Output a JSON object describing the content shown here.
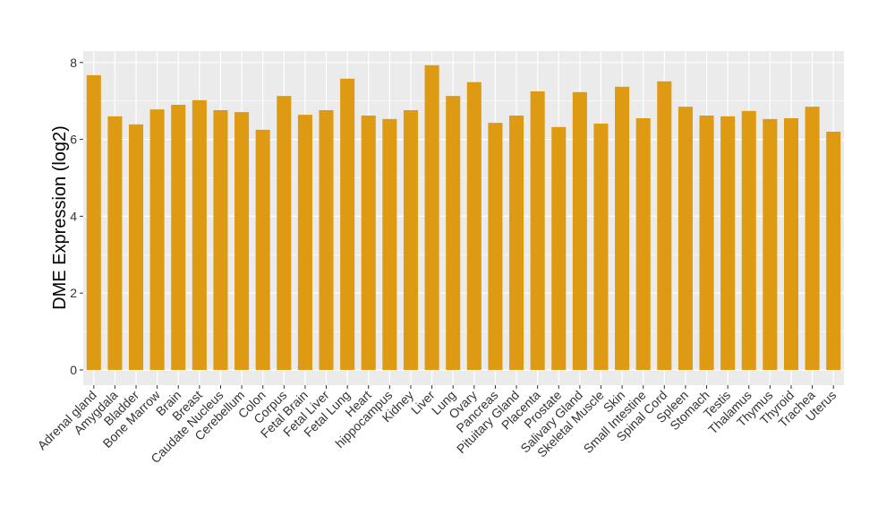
{
  "chart_data": {
    "type": "bar",
    "title": "",
    "xlabel": "",
    "ylabel": "DME Expression (log2)",
    "ylim": [
      -0.4,
      8.3
    ],
    "yticks": [
      0,
      2,
      4,
      6,
      8
    ],
    "grid": true,
    "bar_color": "#DE9A13",
    "panel_color": "#EBEBEB",
    "categories": [
      "Adrenal gland",
      "Amygdala",
      "Bladder",
      "Bone Marrow",
      "Brain",
      "Breast",
      "Caudate Nucleus",
      "Cerebellum",
      "Colon",
      "Corpus",
      "Fetal Brain",
      "Fetal Liver",
      "Fetal Lung",
      "Heart",
      "hippocampus",
      "Kidney",
      "Liver",
      "Lung",
      "Ovary",
      "Pancreas",
      "Pituitary Gland",
      "Placenta",
      "Prostate",
      "Salivary Gland",
      "Skeletal Muscle",
      "Skin",
      "Small Intestine",
      "Spinal Cord",
      "Spleen",
      "Stomach",
      "Testis",
      "Thalamus",
      "Thymus",
      "Thyroid",
      "Trachea",
      "Uterus"
    ],
    "values": [
      7.67,
      6.6,
      6.39,
      6.78,
      6.9,
      7.02,
      6.76,
      6.71,
      6.25,
      7.13,
      6.64,
      6.76,
      7.58,
      6.62,
      6.53,
      6.76,
      7.93,
      7.13,
      7.49,
      6.43,
      6.62,
      7.25,
      6.32,
      7.23,
      6.41,
      7.37,
      6.55,
      7.51,
      6.85,
      6.62,
      6.6,
      6.74,
      6.53,
      6.55,
      6.85,
      6.2
    ]
  }
}
